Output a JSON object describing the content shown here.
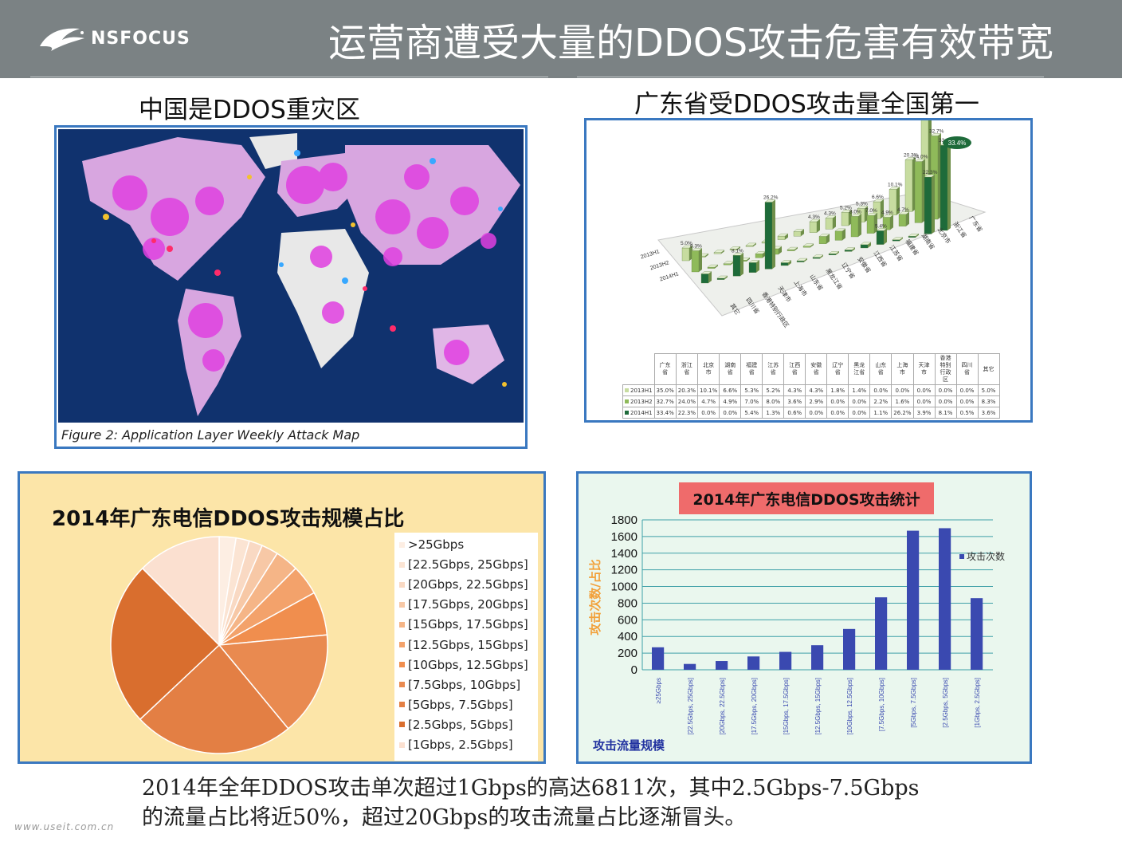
{
  "header": {
    "logo_text": "NSFOCUS",
    "title": "运营商遭受大量的DDOS攻击危害有效带宽"
  },
  "map_panel": {
    "title": "中国是DDOS重灾区",
    "caption": "Figure 2: Application Layer Weekly Attack Map",
    "colors": {
      "ocean": "#10326e",
      "land": "#e8e8e8",
      "attack": "#e040e0"
    }
  },
  "guangdong_panel": {
    "title": "广东省受DDOS攻击量全国第一"
  },
  "pie_panel": {
    "title": "2014年广东电信DDOS攻击规模占比"
  },
  "bar_panel": {
    "title": "2014年广东电信DDOS攻击统计"
  },
  "summary": {
    "line1": "2014年全年DDOS攻击单次超过1Gbps的高达6811次，其中2.5Gbps-7.5Gbps",
    "line2": "的流量占比将近50%，超过20Gbps的攻击流量占比逐渐冒头。"
  },
  "watermark": "www.useit.com.cn",
  "chart_data": [
    {
      "type": "bar",
      "subtype": "3d-grouped",
      "title": "广东省受DDOS攻击量全国第一",
      "categories": [
        "广东省",
        "浙江省",
        "北京市",
        "湖南省",
        "福建省",
        "江苏省",
        "江西省",
        "安徽省",
        "辽宁省",
        "黑龙江省",
        "山东省",
        "上海市",
        "天津市",
        "香港特别行政区",
        "四川省",
        "其它"
      ],
      "category_header_lines": [
        [
          "广东",
          "省"
        ],
        [
          "浙江",
          "省"
        ],
        [
          "北京",
          "市"
        ],
        [
          "湖南",
          "省"
        ],
        [
          "福建",
          "省"
        ],
        [
          "江苏",
          "省"
        ],
        [
          "江西",
          "省"
        ],
        [
          "安徽",
          "省"
        ],
        [
          "辽宁",
          "省"
        ],
        [
          "黑龙",
          "江省"
        ],
        [
          "山东",
          "省"
        ],
        [
          "上海",
          "市"
        ],
        [
          "天津",
          "市"
        ],
        [
          "香港",
          "特别",
          "行政",
          "区"
        ],
        [
          "四川",
          "省"
        ],
        [
          "其它"
        ]
      ],
      "series": [
        {
          "name": "2013H1",
          "color": "#c7dca0",
          "values": [
            "35.0%",
            "20.3%",
            "10.1%",
            "6.6%",
            "5.3%",
            "5.2%",
            "4.3%",
            "4.3%",
            "1.8%",
            "1.4%",
            "0.0%",
            "0.0%",
            "0.0%",
            "0.0%",
            "0.0%",
            "5.0%"
          ]
        },
        {
          "name": "2013H2",
          "color": "#8fba5a",
          "values": [
            "32.7%",
            "24.0%",
            "4.7%",
            "4.9%",
            "7.0%",
            "8.0%",
            "3.6%",
            "2.9%",
            "0.0%",
            "0.0%",
            "2.2%",
            "1.6%",
            "0.0%",
            "0.0%",
            "0.0%",
            "8.3%"
          ]
        },
        {
          "name": "2014H1",
          "color": "#1e6b3a",
          "values": [
            "33.4%",
            "22.3%",
            "0.0%",
            "0.0%",
            "5.4%",
            "1.3%",
            "0.6%",
            "0.0%",
            "0.0%",
            "0.0%",
            "1.1%",
            "26.2%",
            "3.9%",
            "8.1%",
            "0.5%",
            "3.6%"
          ]
        }
      ],
      "annotation": "33.4%"
    },
    {
      "type": "pie",
      "title": "2014年广东电信DDOS攻击规模占比",
      "labels": [
        ">25Gbps",
        "[22.5Gbps, 25Gbps]",
        "[20Gbps, 22.5Gbps]",
        "[17.5Gbps, 20Gbps]",
        "[15Gbps, 17.5Gbps]",
        "[12.5Gbps, 15Gbps]",
        "[10Gbps, 12.5Gbps]",
        "[7.5Gbps, 10Gbps]",
        "[5Gbps, 7.5Gbps]",
        "[2.5Gbps, 5Gbps]",
        "[1Gbps, 2.5Gbps]"
      ],
      "values": [
        2.5,
        2.0,
        2.0,
        2.5,
        3.5,
        4.5,
        6.5,
        15.5,
        24,
        24.5,
        12.5
      ],
      "colors": [
        "#fdeee3",
        "#fbe4d3",
        "#f9d9c3",
        "#f7c8a6",
        "#f5b587",
        "#f3a26b",
        "#f08e4e",
        "#e98a50",
        "#e37f44",
        "#d96e2e",
        "#fbe0d0"
      ],
      "legend_position": "right"
    },
    {
      "type": "bar",
      "title": "2014年广东电信DDOS攻击统计",
      "categories": [
        "≥25Gbps",
        "[22.5Gbps, 25Gbps]",
        "[20Gbps, 22.5Gbps]",
        "[17.5Gbps, 20Gbps]",
        "[15Gbps, 17.5Gbps]",
        "[12.5Gbps, 15Gbps]",
        "[10Gbps, 12.5Gbps]",
        "[7.5Gbps, 10Gbps]",
        "[5Gbps, 7.5Gbps]",
        "[2.5Gbps, 5Gbps]",
        "[1Gbps, 2.5Gbps]"
      ],
      "series": [
        {
          "name": "攻击次数",
          "color": "#3a49b0",
          "values": [
            270,
            70,
            105,
            160,
            215,
            295,
            490,
            870,
            1670,
            1700,
            860
          ]
        }
      ],
      "ylabel": "攻击次数/占比",
      "xlabel": "攻击流量规模",
      "yticks": [
        0,
        200,
        400,
        600,
        800,
        1000,
        1200,
        1400,
        1600,
        1800
      ],
      "ylim": [
        0,
        1800
      ],
      "grid": true,
      "legend_position": "right"
    }
  ]
}
